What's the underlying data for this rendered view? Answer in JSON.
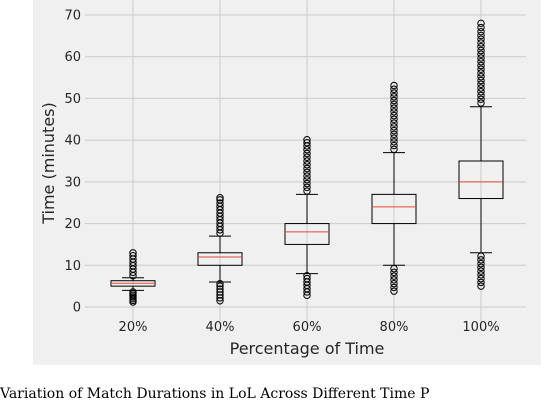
{
  "caption": "Variation of Match Durations in LoL Across Different Time P",
  "chart_data": {
    "type": "box",
    "title": "",
    "xlabel": "Percentage of Time",
    "ylabel": "Time (minutes)",
    "ylim": [
      0,
      70
    ],
    "yticks": [
      0,
      10,
      20,
      30,
      40,
      50,
      60,
      70
    ],
    "grid": true,
    "colors": {
      "background": "#f0f0f0",
      "grid": "#cbcbcb",
      "box": "#000000",
      "median": "#e24a33"
    },
    "categories": [
      "20%",
      "40%",
      "60%",
      "80%",
      "100%"
    ],
    "boxes": [
      {
        "category": "20%",
        "whisker_low": 4,
        "q1": 5,
        "median": 5.7,
        "q3": 6.3,
        "whisker_high": 7,
        "fliers": [
          1.2,
          1.6,
          2.0,
          2.4,
          2.8,
          3.2,
          3.6,
          7.5,
          8.3,
          9.1,
          9.9,
          10.7,
          11.5,
          12.3,
          13
        ]
      },
      {
        "category": "40%",
        "whisker_low": 6,
        "q1": 10,
        "median": 12,
        "q3": 13,
        "whisker_high": 17,
        "fliers": [
          1.5,
          2.2,
          2.9,
          3.6,
          4.3,
          5.0,
          5.6,
          17.7,
          18.5,
          19.3,
          20.1,
          20.9,
          21.7,
          22.5,
          23.3,
          24.1,
          24.9,
          25.7,
          26.2
        ]
      },
      {
        "category": "60%",
        "whisker_low": 8,
        "q1": 15,
        "median": 18,
        "q3": 20,
        "whisker_high": 27,
        "fliers": [
          2.8,
          3.6,
          4.4,
          5.2,
          6.0,
          6.8,
          7.5,
          27.8,
          28.7,
          29.6,
          30.5,
          31.4,
          32.3,
          33.2,
          34.1,
          35.0,
          35.9,
          36.8,
          37.7,
          38.6,
          39.4,
          40.1
        ]
      },
      {
        "category": "80%",
        "whisker_low": 10,
        "q1": 20,
        "median": 24,
        "q3": 27,
        "whisker_high": 37,
        "fliers": [
          3.8,
          4.7,
          5.6,
          6.5,
          7.4,
          8.3,
          9.2,
          37.8,
          38.7,
          39.6,
          40.5,
          41.4,
          42.3,
          43.2,
          44.1,
          45.0,
          45.9,
          46.8,
          47.7,
          48.6,
          49.5,
          50.4,
          51.3,
          52.2,
          53.1
        ]
      },
      {
        "category": "100%",
        "whisker_low": 13,
        "q1": 26,
        "median": 30,
        "q3": 35,
        "whisker_high": 48,
        "fliers": [
          5.0,
          5.9,
          6.8,
          7.7,
          8.6,
          9.5,
          10.4,
          11.3,
          12.2,
          48.9,
          49.8,
          50.7,
          51.6,
          52.5,
          53.4,
          54.3,
          55.2,
          56.1,
          57.0,
          57.9,
          58.8,
          59.7,
          60.6,
          61.5,
          62.4,
          63.3,
          64.2,
          65.1,
          66.0,
          67.0,
          68.0
        ]
      }
    ]
  }
}
